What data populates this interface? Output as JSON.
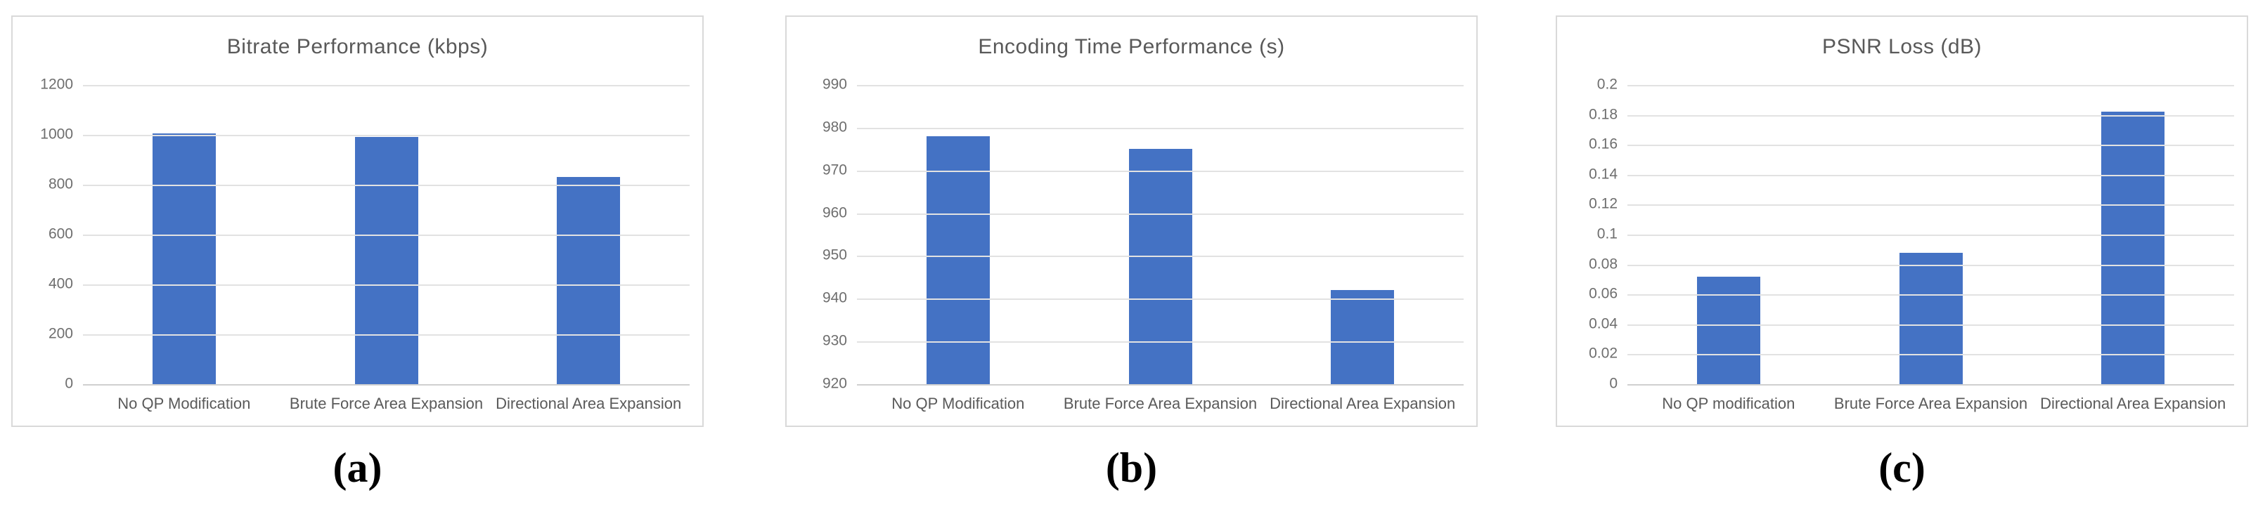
{
  "colors": {
    "bar_fill": "#4472C4",
    "gridline": "#E2E2E2",
    "axis_line": "#D0D0D0",
    "panel_border": "#D9D9D9",
    "title_text": "#595959",
    "tick_text": "#6E6E6E"
  },
  "chart_data": [
    {
      "type": "bar",
      "title": "Bitrate Performance (kbps)",
      "caption": "(a)",
      "categories": [
        "No QP Modification",
        "Brute Force Area Expansion",
        "Directional Area Expansion"
      ],
      "values": [
        1005,
        993,
        830
      ],
      "ylim": [
        0,
        1200
      ],
      "yticks": [
        {
          "value": 0,
          "label": "0"
        },
        {
          "value": 200,
          "label": "200"
        },
        {
          "value": 400,
          "label": "400"
        },
        {
          "value": 600,
          "label": "600"
        },
        {
          "value": 800,
          "label": "800"
        },
        {
          "value": 1000,
          "label": "1000"
        },
        {
          "value": 1200,
          "label": "1200"
        }
      ],
      "grid": true,
      "legend": "none"
    },
    {
      "type": "bar",
      "title": "Encoding Time Performance (s)",
      "caption": "(b)",
      "categories": [
        "No QP Modification",
        "Brute Force Area Expansion",
        "Directional Area Expansion"
      ],
      "values": [
        978,
        975,
        942
      ],
      "ylim": [
        920,
        990
      ],
      "yticks": [
        {
          "value": 920,
          "label": "920"
        },
        {
          "value": 930,
          "label": "930"
        },
        {
          "value": 940,
          "label": "940"
        },
        {
          "value": 950,
          "label": "950"
        },
        {
          "value": 960,
          "label": "960"
        },
        {
          "value": 970,
          "label": "970"
        },
        {
          "value": 980,
          "label": "980"
        },
        {
          "value": 990,
          "label": "990"
        }
      ],
      "grid": true,
      "legend": "none"
    },
    {
      "type": "bar",
      "title": "PSNR Loss (dB)",
      "caption": "(c)",
      "categories": [
        "No QP modification",
        "Brute Force Area Expansion",
        "Directional Area Expansion"
      ],
      "values": [
        0.072,
        0.088,
        0.182
      ],
      "ylim": [
        0,
        0.2
      ],
      "yticks": [
        {
          "value": 0,
          "label": "0"
        },
        {
          "value": 0.02,
          "label": "0.02"
        },
        {
          "value": 0.04,
          "label": "0.04"
        },
        {
          "value": 0.06,
          "label": "0.06"
        },
        {
          "value": 0.08,
          "label": "0.08"
        },
        {
          "value": 0.1,
          "label": "0.1"
        },
        {
          "value": 0.12,
          "label": "0.12"
        },
        {
          "value": 0.14,
          "label": "0.14"
        },
        {
          "value": 0.16,
          "label": "0.16"
        },
        {
          "value": 0.18,
          "label": "0.18"
        },
        {
          "value": 0.2,
          "label": "0.2"
        }
      ],
      "grid": true,
      "legend": "none"
    }
  ]
}
